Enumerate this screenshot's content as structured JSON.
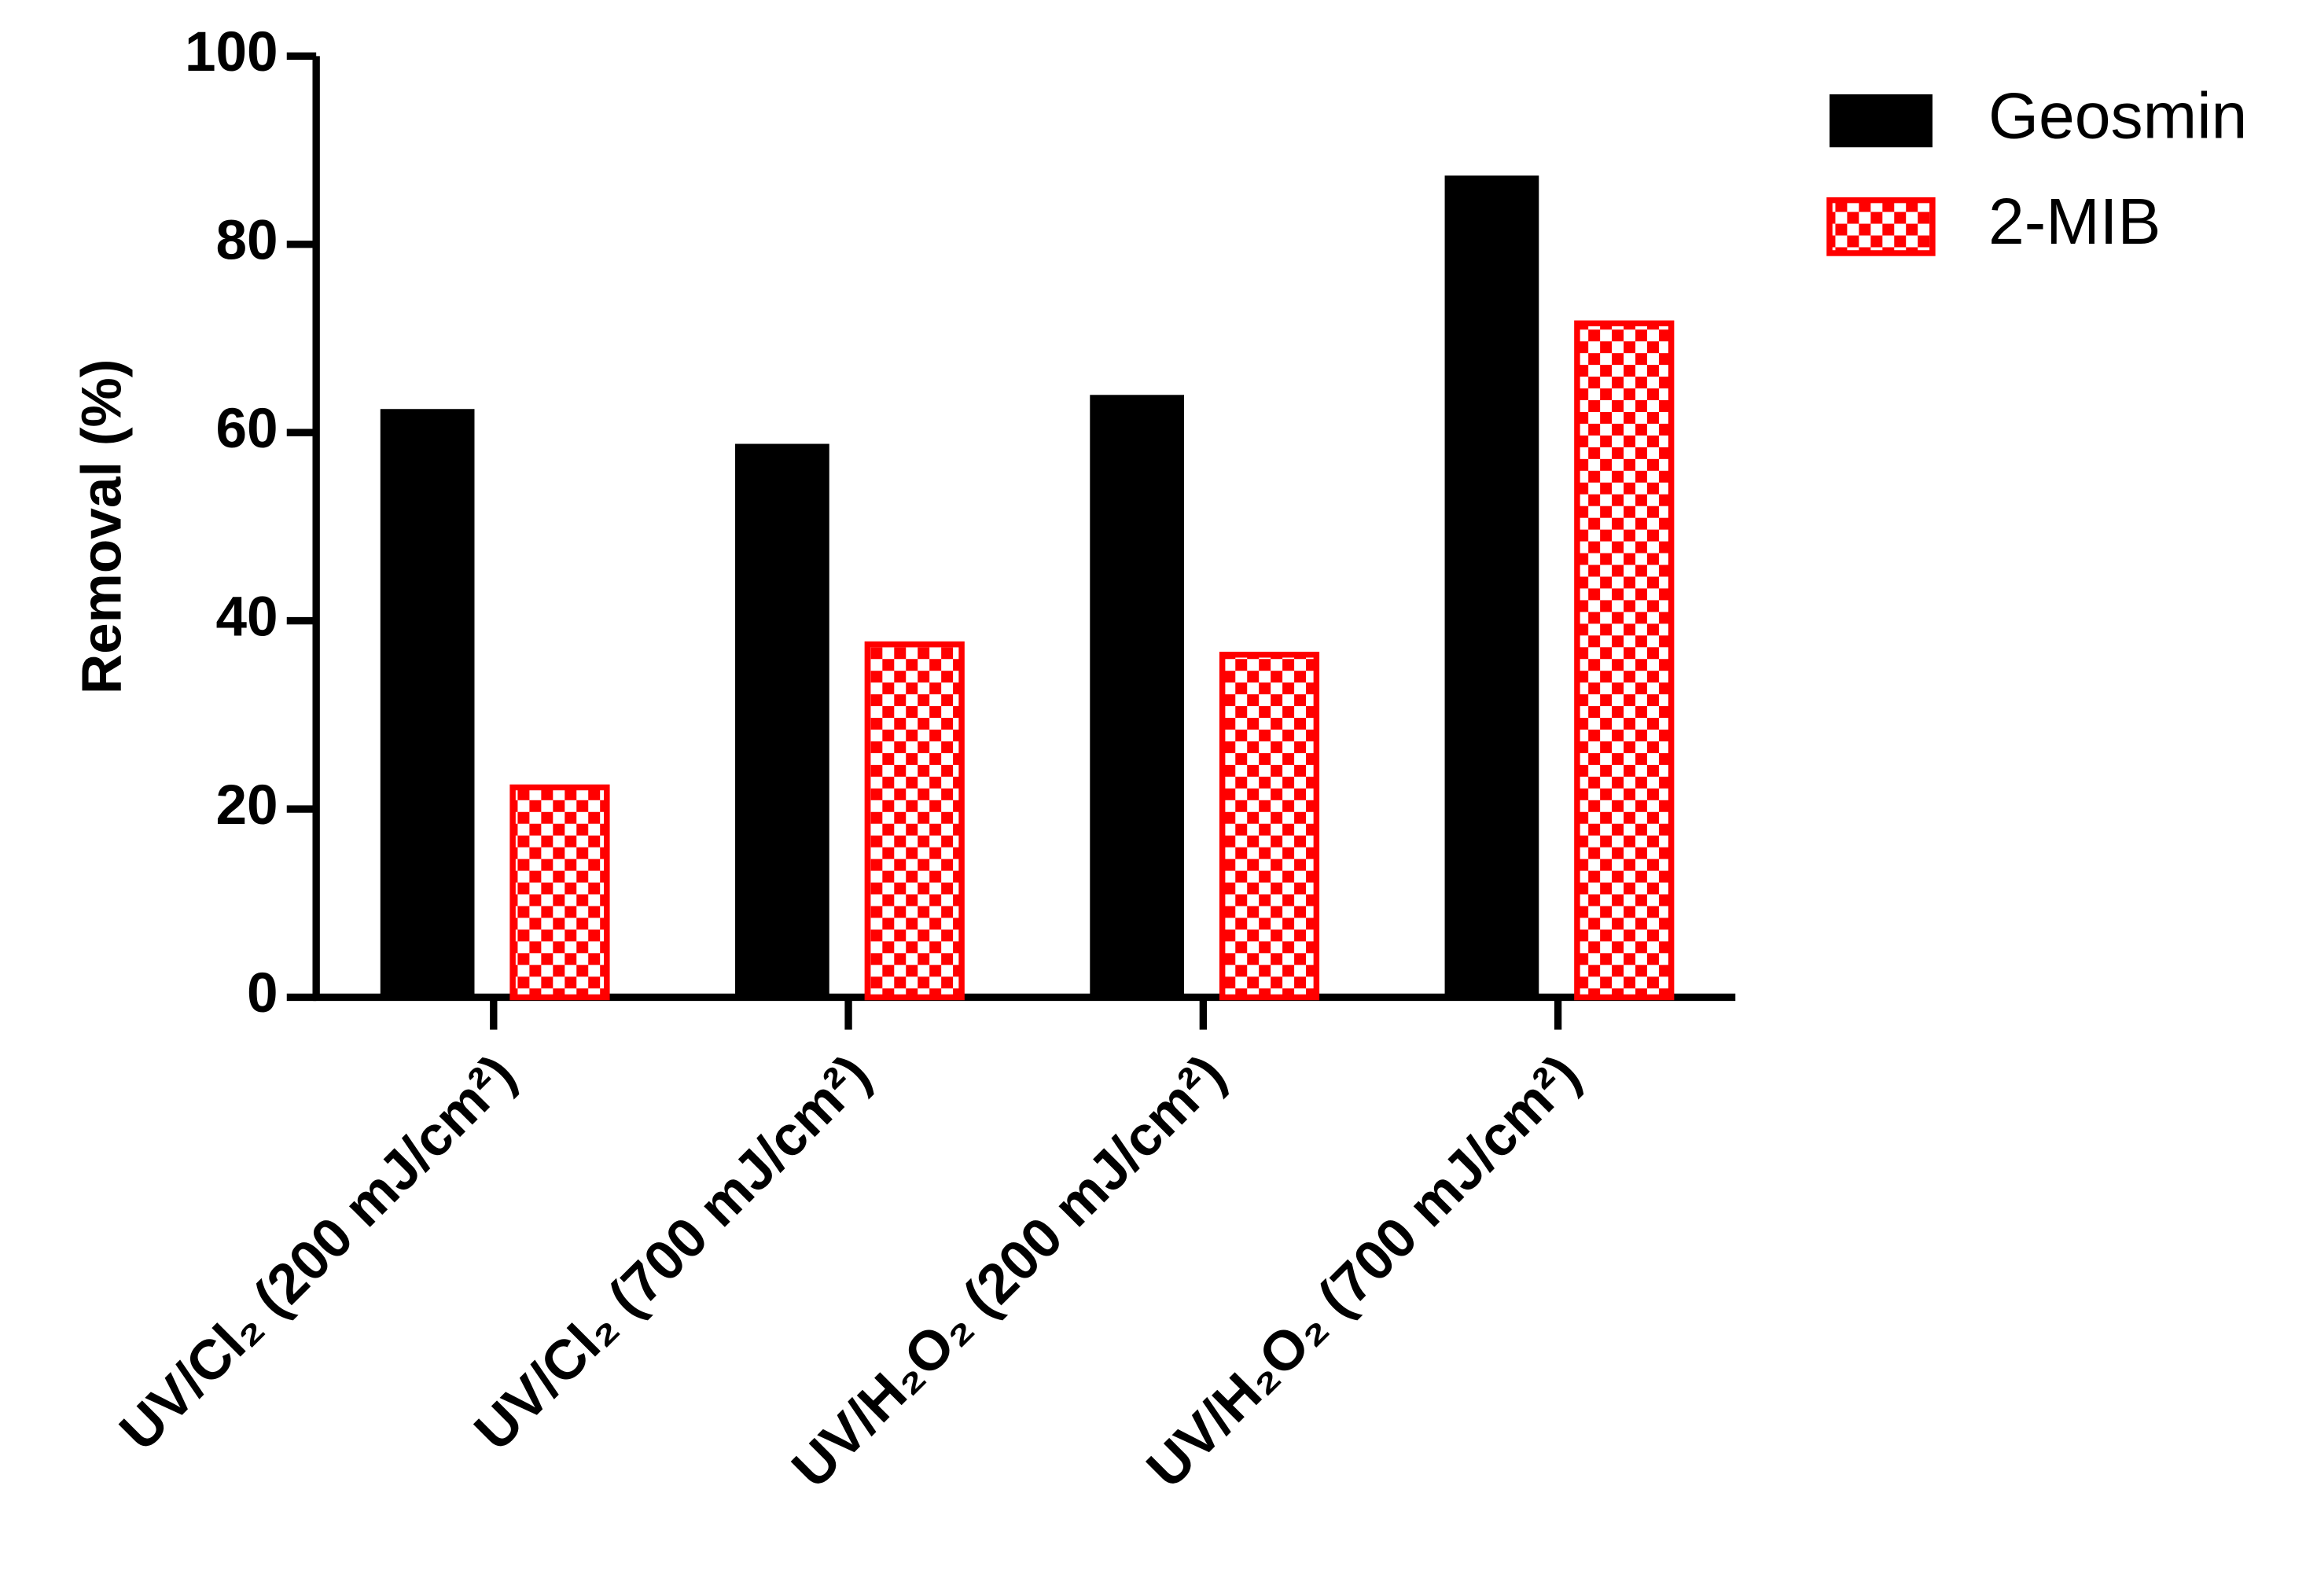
{
  "chart_data": {
    "type": "bar",
    "y_label": "Removal (%)",
    "categories": [
      "UV/Cl₂ (200 mJ/cm²)",
      "UV/Cl₂ (700 mJ/cm²)",
      "UV/H₂O₂ (200 mJ/cm²)",
      "UV/H₂O₂ (700 mJ/cm²)"
    ],
    "series": [
      {
        "name": "Geosmin",
        "color": "#000000",
        "values": [
          62.5,
          58.8,
          64,
          87.3
        ]
      },
      {
        "name": "2-MIB",
        "color": "#ff0000",
        "pattern": "checker",
        "values": [
          22.3,
          37.5,
          36.4,
          71.6
        ]
      }
    ],
    "ylim": [
      0,
      100
    ],
    "yticks": [
      0,
      20,
      40,
      60,
      80,
      100
    ]
  }
}
